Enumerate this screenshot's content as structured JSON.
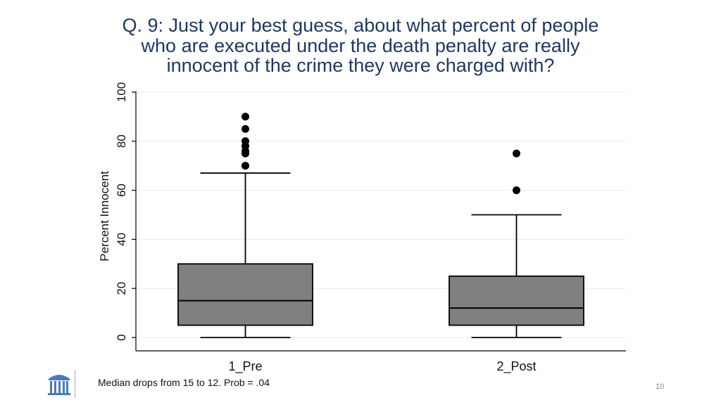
{
  "slide": {
    "title_lines": [
      "Q. 9: Just your best guess, about what percent of people",
      "who are executed under the death penalty are really",
      "innocent of the crime they were charged with?"
    ],
    "footnote": "Median drops from 15 to 12. Prob = .04",
    "page_number": "10",
    "logo_icon": "old-well-icon"
  },
  "colors": {
    "title": "#1f3864",
    "box_fill": "#808080",
    "outline": "#000000",
    "grid": "#e6eaee",
    "logo": "#4b7bb5"
  },
  "chart_data": {
    "type": "boxplot",
    "ylabel": "Percent Innocent",
    "xlabel": "",
    "ylim": [
      0,
      100
    ],
    "yticks": [
      0,
      20,
      40,
      60,
      80,
      100
    ],
    "grid": true,
    "categories": [
      "1_Pre",
      "2_Post"
    ],
    "boxes": [
      {
        "category": "1_Pre",
        "whisker_low": 0,
        "q1": 5,
        "median": 15,
        "q3": 30,
        "whisker_high": 67,
        "outliers": [
          70,
          75,
          76,
          78,
          80,
          85,
          90
        ]
      },
      {
        "category": "2_Post",
        "whisker_low": 0,
        "q1": 5,
        "median": 12,
        "q3": 25,
        "whisker_high": 50,
        "outliers": [
          60,
          75
        ]
      }
    ]
  }
}
